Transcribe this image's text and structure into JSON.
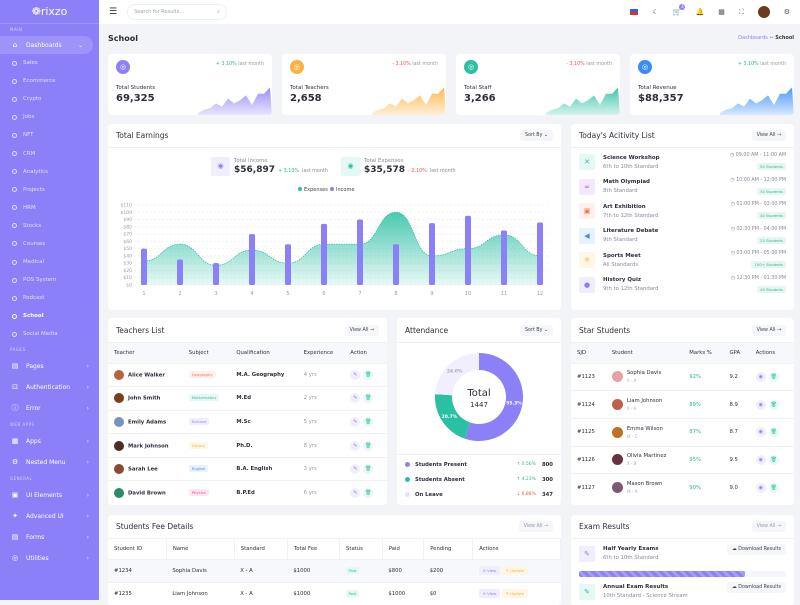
{
  "brand": "rixzo",
  "sidebar": {
    "sections": [
      "MAIN",
      "PAGES",
      "WEB APPS",
      "GENERAL"
    ],
    "dashboards": "Dashboards",
    "sub": [
      "Sales",
      "Ecommerce",
      "Crypto",
      "Jobs",
      "NFT",
      "CRM",
      "Analytics",
      "Projects",
      "HRM",
      "Stocks",
      "Courses",
      "Medical",
      "POS System",
      "Podcast",
      "School",
      "Social Media"
    ],
    "current": "School",
    "pages": [
      {
        "label": "Pages",
        "icon": "file-icon",
        "g": "▤"
      },
      {
        "label": "Authentication",
        "icon": "lock-icon",
        "g": "⊡"
      },
      {
        "label": "Error",
        "icon": "info-icon",
        "g": "ⓘ"
      }
    ],
    "webapps": [
      {
        "label": "Apps",
        "icon": "grid-icon",
        "g": "▦"
      },
      {
        "label": "Nested Menu",
        "icon": "gear-icon",
        "g": "⚙"
      }
    ],
    "general": [
      {
        "label": "UI Elements",
        "icon": "layout-icon",
        "g": "▣"
      },
      {
        "label": "Advanced UI",
        "icon": "sparkle-icon",
        "g": "✦"
      },
      {
        "label": "Forms",
        "icon": "form-icon",
        "g": "▤"
      },
      {
        "label": "Utilities",
        "icon": "badge-icon",
        "g": "◎"
      }
    ]
  },
  "header": {
    "search_placeholder": "Search for Results...",
    "cart_count": "4"
  },
  "page": {
    "title": "School",
    "breadcrumb": [
      "Dashboards",
      "School"
    ]
  },
  "stats": [
    {
      "label": "Total Students",
      "value": "69,325",
      "change": "+ 3.10%",
      "dir": "up",
      "suffix": "last month",
      "color": "#8c80f8"
    },
    {
      "label": "Total Teachers",
      "value": "2,658",
      "change": "- 3.10%",
      "dir": "dn",
      "suffix": "last month",
      "color": "#fcb23e"
    },
    {
      "label": "Total Staff",
      "value": "3,266",
      "change": "- 3.10%",
      "dir": "dn",
      "suffix": "last month",
      "color": "#2bbfa3"
    },
    {
      "label": "Total Revenue",
      "value": "$88,357",
      "change": "+ 3.10%",
      "dir": "up",
      "suffix": "last month",
      "color": "#3a8cf7"
    }
  ],
  "earnings": {
    "title": "Total Earnings",
    "sort": "Sort By",
    "income": {
      "label": "Total Income",
      "value": "$56,897",
      "change": "+ 3.10%",
      "suffix": "last month"
    },
    "expenses": {
      "label": "Total Expenses",
      "value": "$35,578",
      "change": "- 2.10%",
      "suffix": "last month"
    }
  },
  "chart_data": {
    "type": "bar",
    "categories": [
      "1",
      "2",
      "3",
      "4",
      "5",
      "6",
      "7",
      "8",
      "9",
      "10",
      "11",
      "12"
    ],
    "series": [
      {
        "name": "Expenses",
        "type": "area",
        "color": "#2bbfa3",
        "values": [
          33,
          56,
          27,
          48,
          30,
          56,
          56,
          100,
          40,
          50,
          69,
          40
        ]
      },
      {
        "name": "Income",
        "type": "bar",
        "color": "#8c80f8",
        "values": [
          50,
          35,
          30,
          70,
          56,
          84,
          90,
          56,
          85,
          95,
          75,
          86
        ]
      }
    ],
    "yticks": [
      "$0",
      "$10",
      "$20",
      "$30",
      "$40",
      "$50",
      "$60",
      "$70",
      "$80",
      "$90",
      "$100",
      "$110"
    ],
    "ylim": [
      0,
      110
    ],
    "legend": "top-center",
    "grid": true
  },
  "activity": {
    "title": "Today's Acitivity List",
    "view": "View All →",
    "items": [
      {
        "name": "Science Workshop",
        "std": "6th to 10th Standard",
        "time": "09:00 AM  -  11:00 AM",
        "count": "50 Students",
        "icon": "tools-icon",
        "g": "✕",
        "c": "#2bbfa3",
        "bg": "#e6f8f4"
      },
      {
        "name": "Math Olympiad",
        "std": "8th Standard",
        "time": "10:00 AM  -  12:00 PM",
        "count": "30 Students",
        "icon": "infinity-icon",
        "g": "∞",
        "c": "#a855f7",
        "bg": "#f3e8ff"
      },
      {
        "name": "Art Exhibition",
        "std": "7th to 12th Standard",
        "time": "01:00 PM  -  03:00 PM",
        "count": "40 Students",
        "icon": "image-icon",
        "g": "▣",
        "c": "#f97250",
        "bg": "#fff0eb"
      },
      {
        "name": "Literature Debate",
        "std": "9th Standard",
        "time": "02:30 PM  -  04:00 PM",
        "count": "25 Students",
        "icon": "megaphone-icon",
        "g": "◀",
        "c": "#3a8cf7",
        "bg": "#e8f1fe"
      },
      {
        "name": "Sports Meet",
        "std": "All Standards",
        "time": "03:00 PM  -  05:00 PM",
        "count": "100+ Students",
        "icon": "run-icon",
        "g": "✯",
        "c": "#fcb23e",
        "bg": "#fff6e6"
      },
      {
        "name": "History Quiz",
        "std": "9th to 12th Standard",
        "time": "12:30 PM  -  01:30 PM",
        "count": "40 Students",
        "icon": "question-icon",
        "g": "●",
        "c": "#8c80f8",
        "bg": "#f0eefe"
      }
    ]
  },
  "teachers": {
    "title": "Teachers List",
    "view": "View All →",
    "columns": [
      "Teacher",
      "Subject",
      "Qualification",
      "Experience",
      "Action"
    ],
    "rows": [
      {
        "name": "Alice Walker",
        "subject": "Geography",
        "sc": "#f97250",
        "sb": "#fff0eb",
        "qual": "M.A. Geography",
        "exp": "4 yrs",
        "av": "#b5643c"
      },
      {
        "name": "John Smith",
        "subject": "Mathematics",
        "sc": "#2bbfa3",
        "sb": "#e6f8f4",
        "qual": "M.Ed",
        "exp": "2 yrs",
        "av": "#7a3e1c"
      },
      {
        "name": "Emily Adams",
        "subject": "Science",
        "sc": "#8c80f8",
        "sb": "#f0eefe",
        "qual": "M.Sc",
        "exp": "5 yrs",
        "av": "#7a92c0"
      },
      {
        "name": "Mark Johnson",
        "subject": "History",
        "sc": "#fcb23e",
        "sb": "#fff6e6",
        "qual": "Ph.D.",
        "exp": "8 yrs",
        "av": "#4a2e22"
      },
      {
        "name": "Sarah Lee",
        "subject": "English",
        "sc": "#3a8cf7",
        "sb": "#e8f1fe",
        "qual": "B.A. English",
        "exp": "3 yrs",
        "av": "#8a4a30"
      },
      {
        "name": "David Brown",
        "subject": "Physics",
        "sc": "#ec4899",
        "sb": "#fde7f2",
        "qual": "B.P.Ed",
        "exp": "6 yrs",
        "av": "#2a8a6a"
      }
    ]
  },
  "attendance": {
    "title": "Attendance",
    "sort": "Sort By",
    "total_label": "Total",
    "total": "1447",
    "items": [
      {
        "label": "Students Present",
        "change": "↑ 0.56%",
        "dir": "up",
        "value": 800,
        "pct": "55.3%",
        "color": "#8c80f8"
      },
      {
        "label": "Students Absent",
        "change": "↑ 4.23%",
        "dir": "up",
        "value": 300,
        "pct": "20.7%",
        "color": "#2bbfa3"
      },
      {
        "label": "On Leave",
        "change": "↓ 6.88%",
        "dir": "dn",
        "value": 347,
        "pct": "24.0%",
        "color": "#f1effd"
      }
    ]
  },
  "star": {
    "title": "Star Students",
    "view": "View All →",
    "columns": [
      "SJD",
      "Student",
      "Marks %",
      "GPA",
      "Actions"
    ],
    "rows": [
      {
        "id": "#1123",
        "name": "Sophia Davis",
        "cls": "X - A",
        "marks": "92%",
        "gpa": "9.2",
        "av": "#e8a0a0"
      },
      {
        "id": "#1124",
        "name": "Liam Johnson",
        "cls": "X - A",
        "marks": "89%",
        "gpa": "8.9",
        "av": "#c0604a"
      },
      {
        "id": "#1125",
        "name": "Emma Wilson",
        "cls": "IX - C",
        "marks": "87%",
        "gpa": "8.7",
        "av": "#c07020"
      },
      {
        "id": "#1126",
        "name": "Olivia Martinez",
        "cls": "X - B",
        "marks": "95%",
        "gpa": "9.5",
        "av": "#6a3040"
      },
      {
        "id": "#1127",
        "name": "Mason Brown",
        "cls": "IX - A",
        "marks": "90%",
        "gpa": "9.0",
        "av": "#7a5a70"
      }
    ]
  },
  "fees": {
    "title": "Students Fee Details",
    "view": "View All →",
    "columns": [
      "Student ID",
      "Name",
      "Standard",
      "Total Fee",
      "Status",
      "Paid",
      "Pending",
      "Actions"
    ],
    "view_label": "⊙ View",
    "update_label": "✎ Update",
    "rows": [
      {
        "id": "#1234",
        "name": "Sophia Davis",
        "std": "X - A",
        "total": "$1000",
        "status": "Paid",
        "paid": "$800",
        "pending": "$200"
      },
      {
        "id": "#1235",
        "name": "Liam Johnson",
        "std": "X - A",
        "total": "$1000",
        "status": "Paid",
        "paid": "$1000",
        "pending": "$0"
      }
    ]
  },
  "exams": {
    "title": "Exam Results",
    "view": "View All →",
    "download": "Download Results",
    "items": [
      {
        "name": "Half Yearly Exams",
        "std": "6th to 10th Standard",
        "progress": 80,
        "c": "#8c80f8",
        "bg": "#f0eefe"
      },
      {
        "name": "Annual Exam Results",
        "std": "10th Standard - Science Stream",
        "c": "#2bbfa3",
        "bg": "#e6f8f4"
      }
    ]
  }
}
